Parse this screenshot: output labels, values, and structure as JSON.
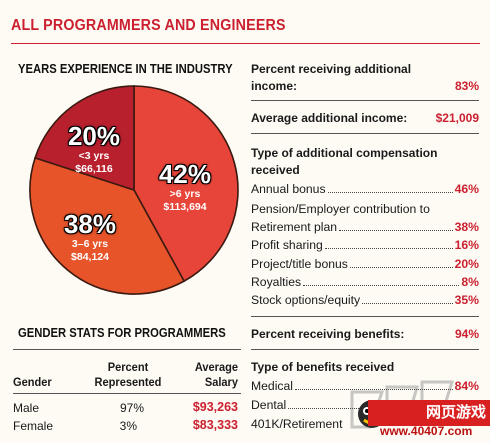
{
  "title": "ALL PROGRAMMERS AND ENGINEERS",
  "colors": {
    "accent": "#cc2030",
    "pie_lt3": "#b8202e",
    "pie_3to6": "#e8542a",
    "pie_gt6": "#e8453a"
  },
  "chart_data": {
    "type": "pie",
    "title": "YEARS EXPERIENCE IN THE INDUSTRY",
    "categories": [
      "<3 yrs",
      "3–6 yrs",
      ">6 yrs"
    ],
    "values": [
      20,
      38,
      42
    ],
    "pct_labels": [
      "20%",
      "38%",
      "42%"
    ],
    "salaries": [
      "$66,116",
      "$84,124",
      "$113,694"
    ]
  },
  "gender": {
    "title": "GENDER STATS FOR PROGRAMMERS",
    "headers": {
      "gender": "Gender",
      "pct_1": "Percent",
      "pct_2": "Represented",
      "sal_1": "Average",
      "sal_2": "Salary"
    },
    "rows": [
      {
        "gender": "Male",
        "pct": "97%",
        "salary": "$93,263"
      },
      {
        "gender": "Female",
        "pct": "3%",
        "salary": "$83,333"
      }
    ]
  },
  "stats": {
    "additional_income": {
      "label_1": "Percent receiving additional",
      "label_2": "income:",
      "value": "83%"
    },
    "avg_additional": {
      "label": "Average additional income:",
      "value": "$21,009"
    },
    "comp_types": {
      "title_1": "Type of additional compensation",
      "title_2": "received",
      "items": [
        {
          "label": "Annual bonus",
          "value": "46%"
        },
        {
          "label": "Pension/Employer contribution to",
          "value": ""
        },
        {
          "label": "Retirement plan",
          "value": "38%"
        },
        {
          "label": "Profit sharing",
          "value": "16%"
        },
        {
          "label": "Project/title bonus",
          "value": "20%"
        },
        {
          "label": "Royalties",
          "value": "8%"
        },
        {
          "label": "Stock options/equity",
          "value": "35%"
        }
      ]
    },
    "benefits": {
      "label": "Percent receiving benefits:",
      "value": "94%"
    },
    "benefit_types": {
      "title": "Type of benefits received",
      "items": [
        {
          "label": "Medical",
          "value": "84%"
        },
        {
          "label": "Dental",
          "value": ""
        },
        {
          "label": "401K/Retirement",
          "value": ""
        }
      ]
    }
  },
  "watermark": {
    "logo_text": "网页游戏",
    "url": "www.40407.com"
  }
}
